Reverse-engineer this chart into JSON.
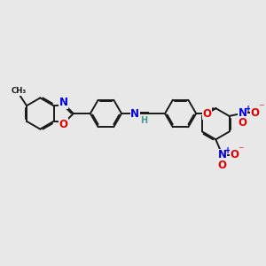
{
  "bg_color": "#e8e8e8",
  "bond_color": "#1a1a1a",
  "bond_width": 1.4,
  "dbo": 0.05,
  "atom_colors": {
    "N": "#0000e0",
    "O": "#e00000",
    "H": "#4a9a8a"
  },
  "fs": 8.5,
  "fig_size": [
    3.0,
    3.0
  ],
  "dpi": 100
}
